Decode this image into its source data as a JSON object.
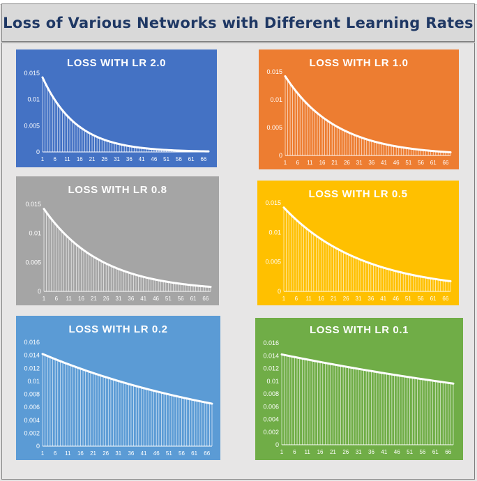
{
  "page": {
    "title": "Loss of Various Networks with Different Learning Rates"
  },
  "chart_data": [
    {
      "type": "line",
      "title": "LOSS WITH LR 2.0",
      "background": "#4472c4",
      "series": [
        {
          "start": 0.0142,
          "decay_per_step": 0.93
        }
      ],
      "x_range": [
        1,
        68
      ],
      "x_ticks": [
        "1",
        "6",
        "11",
        "16",
        "21",
        "26",
        "31",
        "36",
        "41",
        "46",
        "51",
        "56",
        "61",
        "66"
      ],
      "y_ticks": [
        "0",
        "0.005",
        "0.01",
        "0.015"
      ],
      "ylim": [
        0,
        0.015
      ]
    },
    {
      "type": "line",
      "title": "LOSS WITH LR 1.0",
      "background": "#ed7d31",
      "series": [
        {
          "start": 0.0142,
          "decay_per_step": 0.953
        }
      ],
      "x_range": [
        1,
        68
      ],
      "x_ticks": [
        "1",
        "6",
        "11",
        "16",
        "21",
        "26",
        "31",
        "36",
        "41",
        "46",
        "51",
        "56",
        "61",
        "66"
      ],
      "y_ticks": [
        "0",
        "0.005",
        "0.01",
        "0.015"
      ],
      "ylim": [
        0,
        0.015
      ]
    },
    {
      "type": "line",
      "title": "LOSS WITH LR 0.8",
      "background": "#a5a5a5",
      "series": [
        {
          "start": 0.0142,
          "decay_per_step": 0.9575
        }
      ],
      "x_range": [
        1,
        68
      ],
      "x_ticks": [
        "1",
        "6",
        "11",
        "16",
        "21",
        "26",
        "31",
        "36",
        "41",
        "46",
        "51",
        "56",
        "61",
        "66"
      ],
      "y_ticks": [
        "0",
        "0.005",
        "0.01",
        "0.015"
      ],
      "ylim": [
        0,
        0.015
      ]
    },
    {
      "type": "line",
      "title": "LOSS WITH LR 0.5",
      "background": "#ffc000",
      "series": [
        {
          "start": 0.0142,
          "decay_per_step": 0.969
        }
      ],
      "x_range": [
        1,
        68
      ],
      "x_ticks": [
        "1",
        "6",
        "11",
        "16",
        "21",
        "26",
        "31",
        "36",
        "41",
        "46",
        "51",
        "56",
        "61",
        "66"
      ],
      "y_ticks": [
        "0",
        "0.005",
        "0.01",
        "0.015"
      ],
      "ylim": [
        0,
        0.015
      ]
    },
    {
      "type": "line",
      "title": "LOSS WITH LR 0.2",
      "background": "#5b9bd5",
      "series": [
        {
          "start": 0.0142,
          "decay_per_step": 0.9885
        }
      ],
      "x_range": [
        1,
        68
      ],
      "x_ticks": [
        "1",
        "6",
        "11",
        "16",
        "21",
        "26",
        "31",
        "36",
        "41",
        "46",
        "51",
        "56",
        "61",
        "66"
      ],
      "y_ticks": [
        "0",
        "0.002",
        "0.004",
        "0.006",
        "0.008",
        "0.01",
        "0.012",
        "0.014",
        "0.016"
      ],
      "ylim": [
        0,
        0.016
      ]
    },
    {
      "type": "line",
      "title": "LOSS WITH LR 0.1",
      "background": "#70ad47",
      "series": [
        {
          "start": 0.0142,
          "decay_per_step": 0.9942
        }
      ],
      "x_range": [
        1,
        68
      ],
      "x_ticks": [
        "1",
        "6",
        "11",
        "16",
        "21",
        "26",
        "31",
        "36",
        "41",
        "46",
        "51",
        "56",
        "61",
        "66"
      ],
      "y_ticks": [
        "0",
        "0.002",
        "0.004",
        "0.006",
        "0.008",
        "0.01",
        "0.012",
        "0.014",
        "0.016"
      ],
      "ylim": [
        0,
        0.016
      ]
    }
  ]
}
